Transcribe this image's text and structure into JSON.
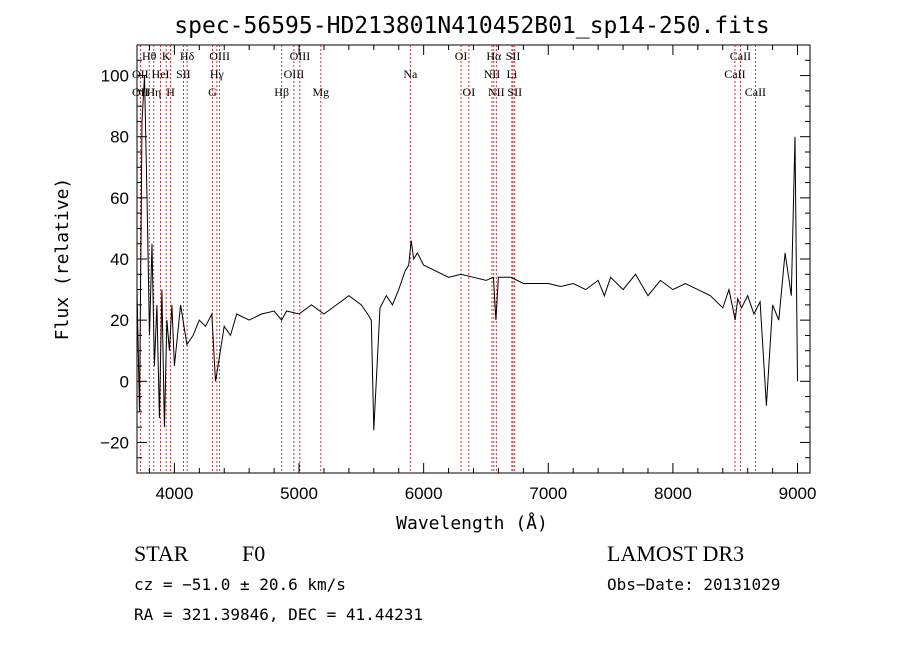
{
  "chart_data": {
    "type": "line",
    "title": "spec-56595-HD213801N410452B01_sp14-250.fits",
    "xlabel": "Wavelength (Å)",
    "ylabel": "Flux (relative)",
    "xlim": [
      3700,
      9100
    ],
    "ylim": [
      -30,
      110
    ],
    "xticks": [
      4000,
      5000,
      6000,
      7000,
      8000,
      9000
    ],
    "yticks": [
      -20,
      0,
      20,
      40,
      60,
      80,
      100
    ],
    "series": [
      {
        "name": "flux",
        "x": [
          3700,
          3720,
          3740,
          3760,
          3780,
          3800,
          3820,
          3840,
          3860,
          3880,
          3900,
          3920,
          3940,
          3960,
          3980,
          4000,
          4050,
          4100,
          4150,
          4200,
          4250,
          4300,
          4330,
          4350,
          4400,
          4450,
          4500,
          4600,
          4700,
          4800,
          4860,
          4900,
          5000,
          5100,
          5200,
          5300,
          5400,
          5500,
          5550,
          5580,
          5600,
          5650,
          5700,
          5750,
          5800,
          5850,
          5880,
          5900,
          5920,
          5950,
          6000,
          6100,
          6200,
          6300,
          6400,
          6500,
          6560,
          6580,
          6600,
          6700,
          6800,
          6900,
          7000,
          7100,
          7200,
          7300,
          7400,
          7450,
          7500,
          7600,
          7700,
          7800,
          7900,
          8000,
          8100,
          8200,
          8300,
          8400,
          8450,
          8500,
          8520,
          8550,
          8600,
          8650,
          8700,
          8750,
          8800,
          8850,
          8900,
          8950,
          8980,
          9000
        ],
        "y": [
          30,
          -10,
          85,
          100,
          60,
          15,
          45,
          5,
          25,
          -12,
          30,
          -15,
          20,
          10,
          25,
          5,
          25,
          12,
          15,
          20,
          18,
          22,
          0,
          5,
          18,
          15,
          22,
          20,
          22,
          23,
          20,
          23,
          22,
          25,
          22,
          25,
          28,
          25,
          22,
          20,
          -16,
          24,
          28,
          25,
          30,
          36,
          38,
          46,
          40,
          42,
          38,
          36,
          34,
          35,
          34,
          33,
          34,
          20,
          34,
          34,
          32,
          32,
          32,
          31,
          32,
          30,
          33,
          28,
          34,
          30,
          35,
          28,
          33,
          30,
          32,
          30,
          28,
          24,
          30,
          20,
          27,
          24,
          28,
          22,
          26,
          -8,
          25,
          20,
          42,
          28,
          80,
          0
        ]
      }
    ],
    "lines": [
      {
        "name": "Hθ",
        "wave": 3798
      },
      {
        "name": "OII",
        "wave": 3727
      },
      {
        "name": "Hη",
        "wave": 3835
      },
      {
        "name": "HeI",
        "wave": 3889
      },
      {
        "name": "K",
        "wave": 3934
      },
      {
        "name": "H",
        "wave": 3969
      },
      {
        "name": "SII",
        "wave": 4072
      },
      {
        "name": "Hδ",
        "wave": 4102
      },
      {
        "name": "G",
        "wave": 4305
      },
      {
        "name": "Hγ",
        "wave": 4341
      },
      {
        "name": "OIII",
        "wave": 4363
      },
      {
        "name": "Hβ",
        "wave": 4861
      },
      {
        "name": "OIII",
        "wave": 4959
      },
      {
        "name": "OIII",
        "wave": 5007
      },
      {
        "name": "Mg",
        "wave": 5175
      },
      {
        "name": "Na",
        "wave": 5893
      },
      {
        "name": "OI",
        "wave": 6300
      },
      {
        "name": "OI",
        "wave": 6363
      },
      {
        "name": "NII",
        "wave": 6548
      },
      {
        "name": "Hα",
        "wave": 6563
      },
      {
        "name": "NII",
        "wave": 6583
      },
      {
        "name": "Li",
        "wave": 6708
      },
      {
        "name": "SII",
        "wave": 6717
      },
      {
        "name": "SII",
        "wave": 6731
      },
      {
        "name": "CaII",
        "wave": 8498
      },
      {
        "name": "CaII",
        "wave": 8542
      },
      {
        "name": "CaII",
        "wave": 8662
      }
    ],
    "labels": [
      {
        "text": "Hθ",
        "wave": 3798,
        "row": 1
      },
      {
        "text": "K",
        "wave": 3934,
        "row": 1
      },
      {
        "text": "Hδ",
        "wave": 4102,
        "row": 1
      },
      {
        "text": "OIII",
        "wave": 4363,
        "row": 1
      },
      {
        "text": "OIII",
        "wave": 5007,
        "row": 1
      },
      {
        "text": "OI",
        "wave": 6300,
        "row": 1
      },
      {
        "text": "Hα",
        "wave": 6563,
        "row": 1
      },
      {
        "text": "SII",
        "wave": 6717,
        "row": 1
      },
      {
        "text": "CaII",
        "wave": 8542,
        "row": 1
      },
      {
        "text": "OII",
        "wave": 3727,
        "row": 2
      },
      {
        "text": "HeI",
        "wave": 3889,
        "row": 2
      },
      {
        "text": "SII",
        "wave": 4072,
        "row": 2
      },
      {
        "text": "Hγ",
        "wave": 4341,
        "row": 2
      },
      {
        "text": "OIII",
        "wave": 4959,
        "row": 2
      },
      {
        "text": "Na",
        "wave": 5893,
        "row": 2
      },
      {
        "text": "NII",
        "wave": 6548,
        "row": 2
      },
      {
        "text": "Li",
        "wave": 6708,
        "row": 2
      },
      {
        "text": "CaII",
        "wave": 8498,
        "row": 2
      },
      {
        "text": "OII",
        "wave": 3727,
        "row": 3
      },
      {
        "text": "Hη",
        "wave": 3835,
        "row": 3
      },
      {
        "text": "H",
        "wave": 3969,
        "row": 3
      },
      {
        "text": "G",
        "wave": 4305,
        "row": 3
      },
      {
        "text": "Hβ",
        "wave": 4861,
        "row": 3
      },
      {
        "text": "Mg",
        "wave": 5175,
        "row": 3
      },
      {
        "text": "OI",
        "wave": 6363,
        "row": 3
      },
      {
        "text": "NII",
        "wave": 6583,
        "row": 3
      },
      {
        "text": "SII",
        "wave": 6731,
        "row": 3
      },
      {
        "text": "CaII",
        "wave": 8662,
        "row": 3
      }
    ],
    "line_color": "#000000",
    "marker_color": "#cc0000"
  },
  "info": {
    "object_class": "STAR",
    "subclass": "F0",
    "survey": "LAMOST DR3",
    "cz": "cz = −51.0 ± 20.6 km/s",
    "obs_date": "Obs−Date: 20131029",
    "coords": "RA = 321.39846, DEC =  41.44231"
  }
}
